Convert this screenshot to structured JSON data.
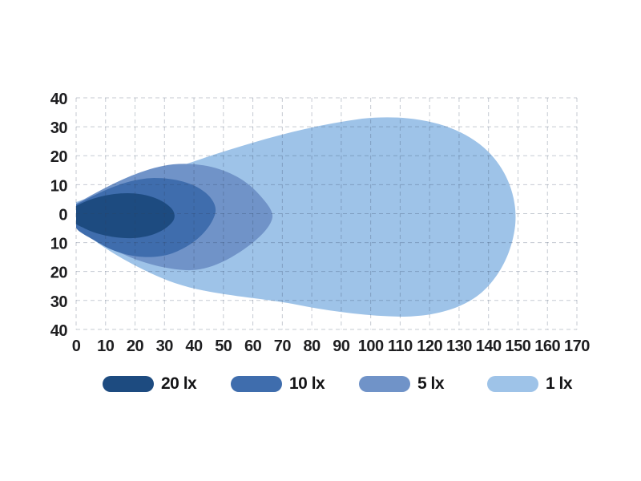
{
  "chart_data": {
    "type": "area",
    "subtype": "isolux-beam-pattern",
    "title": "",
    "xlabel": "",
    "ylabel": "",
    "x_range": [
      0,
      170
    ],
    "y_range": [
      -40,
      40
    ],
    "x_tick_step": 10,
    "grid": true,
    "grid_style": "dashed",
    "legend_position": "bottom",
    "x_ticks": [
      "0",
      "10",
      "20",
      "30",
      "40",
      "50",
      "60",
      "70",
      "80",
      "90",
      "100",
      "110",
      "120",
      "130",
      "140",
      "150",
      "160",
      "170"
    ],
    "y_ticks": [
      "40",
      "30",
      "20",
      "10",
      "0",
      "10",
      "20",
      "30",
      "40"
    ],
    "series": [
      {
        "label": "20 lx",
        "lux": 20,
        "color": "#1d4b80",
        "reach": 33,
        "spread_up": 7,
        "spread_down": 8
      },
      {
        "label": "10 lx",
        "lux": 10,
        "color": "#3f6dad",
        "reach": 47,
        "spread_up": 12,
        "spread_down": 16
      },
      {
        "label": "5 lx",
        "lux": 5,
        "color": "#7093c8",
        "reach": 67,
        "spread_up": 17,
        "spread_down": 20
      },
      {
        "label": "1 lx",
        "lux": 1,
        "color": "#9ec3e8",
        "reach": 150,
        "spread_up": 34,
        "spread_down": 36
      }
    ]
  },
  "style": {
    "grid_color": "rgba(45,65,95,0.28)",
    "tick_color": "#1e1e20",
    "background": "#ffffff"
  }
}
